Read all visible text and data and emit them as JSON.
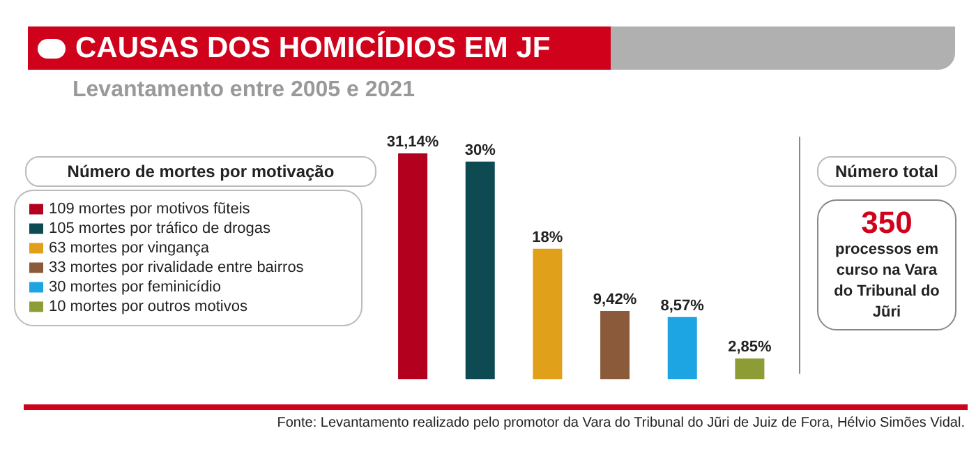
{
  "chart_data": {
    "type": "bar",
    "stacked": true,
    "title": "CAUSAS DOS HOMICÍDIOS EM JF",
    "subtitle": "Levantamento entre 2005 e 2021",
    "legend_title": "Número de mortes por motivação",
    "categories": [
      null,
      null,
      null,
      null,
      null,
      null
    ],
    "series": [
      {
        "name": "109 mortes por motivos fũteis",
        "color": "#b3001f",
        "values": [
          31.14,
          null,
          null,
          null,
          null,
          null
        ],
        "value_labels": [
          "31,14%",
          null,
          null,
          null,
          null,
          null
        ]
      },
      {
        "name": "105 mortes por tráfico de drogas",
        "color": "#0e4a52",
        "values": [
          null,
          30,
          null,
          null,
          null,
          null
        ],
        "value_labels": [
          null,
          "30%",
          null,
          null,
          null,
          null
        ]
      },
      {
        "name": "63 mortes por vingança",
        "color": "#e0a01a",
        "values": [
          null,
          null,
          18,
          null,
          null,
          null
        ],
        "value_labels": [
          null,
          null,
          "18%",
          null,
          null,
          null
        ]
      },
      {
        "name": "33 mortes por rivalidade entre bairros",
        "color": "#8b5a3a",
        "values": [
          null,
          null,
          null,
          9.42,
          null,
          null
        ],
        "value_labels": [
          null,
          null,
          null,
          "9,42%",
          null,
          null
        ]
      },
      {
        "name": "30 mortes por feminicídio",
        "color": "#1ca5e2",
        "values": [
          null,
          null,
          null,
          null,
          8.57,
          null
        ],
        "value_labels": [
          null,
          null,
          null,
          null,
          "8,57%",
          null
        ]
      },
      {
        "name": "10 mortes por outros motivos",
        "color": "#8d9c34",
        "values": [
          null,
          null,
          null,
          null,
          null,
          2.85
        ],
        "value_labels": [
          null,
          null,
          null,
          null,
          null,
          "2,85%"
        ]
      }
    ],
    "legend": "left",
    "tick_labels": false,
    "annotations": [
      "Número total",
      "350",
      "processos em curso na Vara do Tribunal do Jũri",
      "Fonte: Levantamento realizado pelo promotor da Vara do Tribunal do Jũri de Juiz de Fora, Hélvio Simões Vidal."
    ]
  }
}
